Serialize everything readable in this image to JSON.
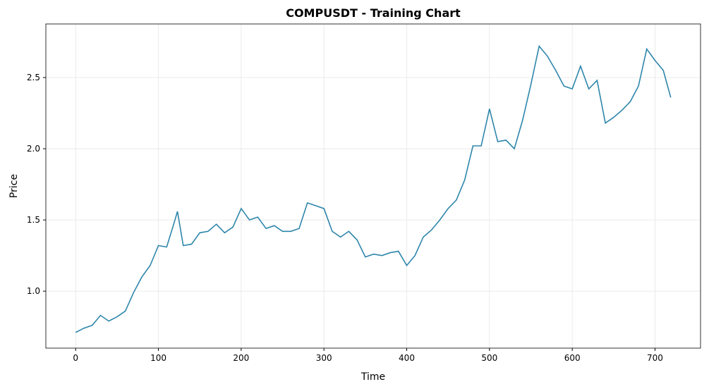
{
  "chart_data": {
    "type": "line",
    "title": "COMPUSDT - Training Chart",
    "x_label": "Time",
    "y_label": "Price",
    "x": [
      0,
      10,
      20,
      30,
      40,
      50,
      60,
      70,
      80,
      90,
      100,
      110,
      120,
      123,
      130,
      140,
      150,
      160,
      170,
      180,
      190,
      200,
      210,
      220,
      230,
      240,
      250,
      260,
      270,
      280,
      290,
      300,
      310,
      320,
      330,
      340,
      350,
      360,
      370,
      380,
      390,
      400,
      410,
      420,
      430,
      440,
      450,
      460,
      470,
      480,
      490,
      500,
      510,
      520,
      530,
      540,
      550,
      560,
      570,
      580,
      590,
      600,
      610,
      620,
      630,
      640,
      650,
      660,
      670,
      680,
      690,
      700,
      710,
      719
    ],
    "series": [
      {
        "name": "COMPUSDT",
        "color": "#2e86ab",
        "values": [
          0.71,
          0.74,
          0.76,
          0.83,
          0.79,
          0.82,
          0.86,
          0.99,
          1.1,
          1.18,
          1.32,
          1.31,
          1.5,
          1.56,
          1.32,
          1.33,
          1.41,
          1.42,
          1.47,
          1.41,
          1.45,
          1.58,
          1.5,
          1.52,
          1.44,
          1.46,
          1.42,
          1.42,
          1.44,
          1.62,
          1.6,
          1.58,
          1.42,
          1.38,
          1.42,
          1.36,
          1.24,
          1.26,
          1.25,
          1.27,
          1.28,
          1.18,
          1.25,
          1.38,
          1.43,
          1.5,
          1.58,
          1.64,
          1.78,
          2.02,
          2.02,
          2.28,
          2.05,
          2.06,
          2.0,
          2.2,
          2.45,
          2.72,
          2.65,
          2.55,
          2.44,
          2.42,
          2.58,
          2.42,
          2.48,
          2.18,
          2.22,
          2.27,
          2.33,
          2.44,
          2.7,
          2.62,
          2.55,
          2.36
        ]
      }
    ],
    "xlim": [
      -36,
      755
    ],
    "ylim": [
      0.6,
      2.876
    ],
    "xticks": [
      0,
      100,
      200,
      300,
      400,
      500,
      600,
      700
    ],
    "yticks": [
      {
        "value": 1,
        "label": "1.0"
      },
      {
        "value": 1.5,
        "label": "1.5"
      },
      {
        "value": 2,
        "label": "2.0"
      },
      {
        "value": 2.5,
        "label": "2.5"
      }
    ],
    "grid": true
  }
}
